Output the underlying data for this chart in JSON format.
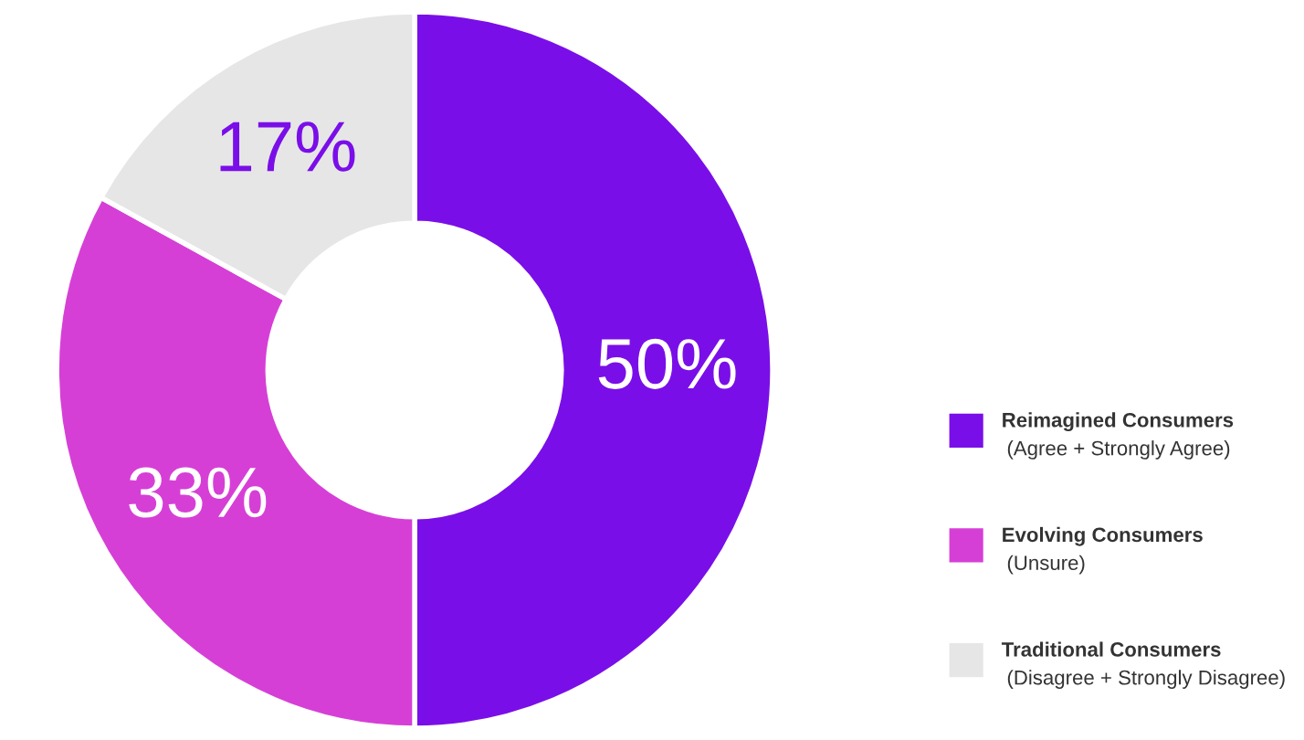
{
  "chart_data": {
    "type": "donut",
    "categories": [
      "Reimagined Consumers\n(Agree + Strongly Agree)",
      "Evolving Consumers\n(Unsure)",
      "Traditional Consumers\n(Disagree + Strongly Disagree)"
    ],
    "values": [
      50,
      33,
      17
    ],
    "colors": [
      "#7a0ee8",
      "#d63fd6",
      "#e6e6e6"
    ],
    "value_labels": [
      "50%",
      "33%",
      "17%"
    ],
    "legend": "right"
  }
}
